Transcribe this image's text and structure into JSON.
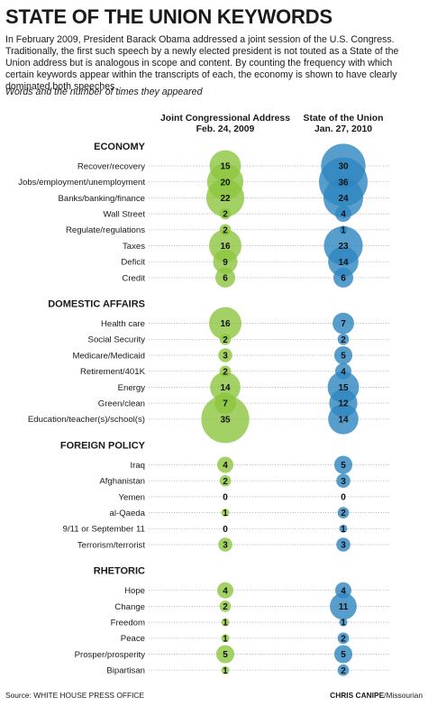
{
  "header": {
    "title": "STATE OF THE UNION KEYWORDS",
    "intro": "In February 2009, President Barack Obama addressed a joint session of the U.S. Congress. Traditionally, the first such speech by a newly elected president is not touted as a State of the Union address but is analogous in scope and content. By counting the frequency with which certain keywords appear within the transcripts of each, the economy is shown to have clearly dominated both speeches.",
    "subtitle": "Words and the number of times they appeared"
  },
  "chart_data": {
    "type": "bubble",
    "columns": [
      {
        "name": "Joint Congressional Address",
        "date": "Feb. 24, 2009",
        "color": "#8cc63f"
      },
      {
        "name": "State of the Union",
        "date": "Jan. 27, 2010",
        "color": "#2e86c1"
      }
    ],
    "sections": [
      {
        "name": "ECONOMY",
        "rows": [
          {
            "label": "Recover/recovery",
            "values": [
              15,
              30
            ]
          },
          {
            "label": "Jobs/employment/unemployment",
            "values": [
              20,
              36
            ]
          },
          {
            "label": "Banks/banking/finance",
            "values": [
              22,
              24
            ]
          },
          {
            "label": "Wall Street",
            "values": [
              2,
              4
            ]
          },
          {
            "label": "Regulate/regulations",
            "values": [
              2,
              1
            ]
          },
          {
            "label": "Taxes",
            "values": [
              16,
              23
            ]
          },
          {
            "label": "Deficit",
            "values": [
              9,
              14
            ]
          },
          {
            "label": "Credit",
            "values": [
              6,
              6
            ]
          }
        ]
      },
      {
        "name": "DOMESTIC AFFAIRS",
        "rows": [
          {
            "label": "Health care",
            "values": [
              16,
              7
            ]
          },
          {
            "label": "Social Security",
            "values": [
              2,
              2
            ]
          },
          {
            "label": "Medicare/Medicaid",
            "values": [
              3,
              5
            ]
          },
          {
            "label": "Retirement/401K",
            "values": [
              2,
              4
            ]
          },
          {
            "label": "Energy",
            "values": [
              14,
              15
            ]
          },
          {
            "label": "Green/clean",
            "values": [
              7,
              12
            ]
          },
          {
            "label": "Education/teacher(s)/school(s)",
            "values": [
              35,
              14
            ]
          }
        ]
      },
      {
        "name": "FOREIGN POLICY",
        "rows": [
          {
            "label": "Iraq",
            "values": [
              4,
              5
            ]
          },
          {
            "label": "Afghanistan",
            "values": [
              2,
              3
            ]
          },
          {
            "label": "Yemen",
            "values": [
              0,
              0
            ]
          },
          {
            "label": "al-Qaeda",
            "values": [
              1,
              2
            ]
          },
          {
            "label": "9/11 or September 11",
            "values": [
              0,
              1
            ]
          },
          {
            "label": "Terrorism/terrorist",
            "values": [
              3,
              3
            ]
          }
        ]
      },
      {
        "name": "RHETORIC",
        "rows": [
          {
            "label": "Hope",
            "values": [
              4,
              4
            ]
          },
          {
            "label": "Change",
            "values": [
              2,
              11
            ]
          },
          {
            "label": "Freedom",
            "values": [
              1,
              1
            ]
          },
          {
            "label": "Peace",
            "values": [
              1,
              2
            ]
          },
          {
            "label": "Prosper/prosperity",
            "values": [
              5,
              5
            ]
          },
          {
            "label": "Bipartisan",
            "values": [
              1,
              2
            ]
          }
        ]
      }
    ]
  },
  "footer": {
    "source": "Source: WHITE HOUSE PRESS OFFICE",
    "credit_name": "CHRIS CANIPE",
    "credit_org": "/Missourian"
  }
}
